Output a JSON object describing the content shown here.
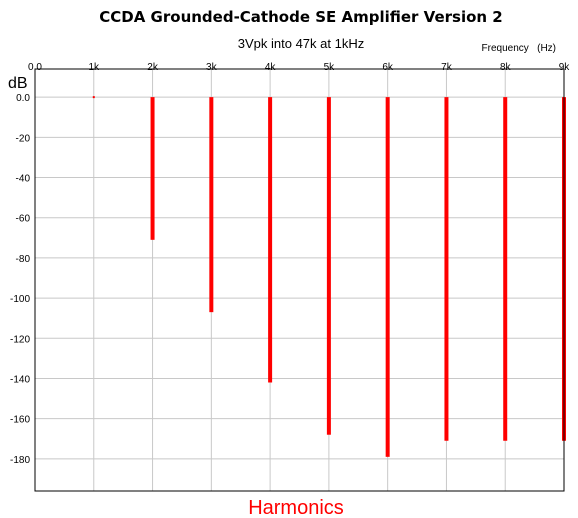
{
  "chart_data": {
    "type": "bar",
    "title": "CCDA Grounded-Cathode SE Amplifier Version 2",
    "subtitle": "3Vpk into 47k at 1kHz",
    "xlabel": "Frequency   (Hz)",
    "ylabel": "dB",
    "footer_label": "Harmonics",
    "x_ticks": [
      "0.0",
      "1k",
      "2k",
      "3k",
      "4k",
      "5k",
      "6k",
      "7k",
      "8k",
      "9k"
    ],
    "y_ticks": [
      "0.0",
      "-20",
      "-40",
      "-60",
      "-80",
      "-100",
      "-120",
      "-140",
      "-160",
      "-180"
    ],
    "xlim": [
      0,
      9000
    ],
    "ylim": [
      -196,
      14
    ],
    "x_axis_position": "top",
    "grid": true,
    "series_color": "#ff0000",
    "points": [
      {
        "x": 1000,
        "y": 0
      },
      {
        "x": 2000,
        "y": -71
      },
      {
        "x": 3000,
        "y": -107
      },
      {
        "x": 4000,
        "y": -142
      },
      {
        "x": 5000,
        "y": -168
      },
      {
        "x": 6000,
        "y": -179
      },
      {
        "x": 7000,
        "y": -171
      },
      {
        "x": 8000,
        "y": -171
      },
      {
        "x": 9000,
        "y": -171
      }
    ]
  }
}
